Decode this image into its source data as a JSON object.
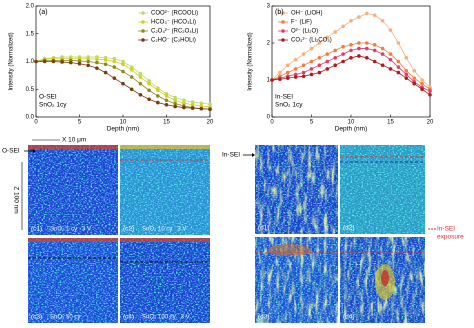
{
  "chart_data": [
    {
      "type": "line",
      "annotation": "(a)",
      "notes": [
        "O-SEI",
        "SnO₂ 1cy"
      ],
      "xlabel": "Depth (nm)",
      "ylabel": "Intensity (Normalized)",
      "x": [
        0,
        1,
        2,
        3,
        4,
        5,
        6,
        7,
        8,
        9,
        10,
        11,
        12,
        13,
        14,
        15,
        16,
        17,
        18,
        19,
        20
      ],
      "xlim": [
        0,
        20
      ],
      "xticks": [
        0,
        5,
        10,
        15,
        20
      ],
      "ylim": [
        0,
        2
      ],
      "yticks": [
        {
          "value": 0,
          "label": "0.0"
        },
        0.5,
        {
          "value": 1,
          "label": "1.0"
        },
        1.5,
        {
          "value": 2,
          "label": "2.0"
        }
      ],
      "legend": "upper right",
      "series": [
        {
          "name": "COO²⁻ (RCOOLi)",
          "color": "#b9dd6a",
          "values": [
            1.0,
            1.05,
            1.07,
            1.08,
            1.08,
            1.08,
            1.08,
            1.08,
            1.07,
            1.05,
            1.0,
            0.9,
            0.78,
            0.65,
            0.52,
            0.42,
            0.35,
            0.3,
            0.27,
            0.25,
            0.23
          ]
        },
        {
          "name": "HCO₃⁻ (HCO₃Li)",
          "color": "#d6cf1e",
          "values": [
            1.0,
            1.04,
            1.05,
            1.05,
            1.05,
            1.05,
            1.05,
            1.04,
            1.03,
            1.0,
            0.95,
            0.85,
            0.72,
            0.6,
            0.48,
            0.38,
            0.3,
            0.25,
            0.22,
            0.2,
            0.18
          ]
        },
        {
          "name": "C₂O₄²⁻ (RC₂O₄Li)",
          "color": "#8c8a1c",
          "values": [
            1.0,
            1.02,
            1.02,
            1.02,
            1.02,
            1.01,
            1.0,
            0.98,
            0.95,
            0.9,
            0.82,
            0.72,
            0.6,
            0.48,
            0.38,
            0.3,
            0.24,
            0.2,
            0.17,
            0.15,
            0.14
          ]
        },
        {
          "name": "C₂HO⁻ (C₂HOLi)",
          "color": "#7a3a12",
          "values": [
            1.0,
            1.0,
            1.0,
            0.99,
            0.98,
            0.96,
            0.93,
            0.88,
            0.8,
            0.7,
            0.6,
            0.5,
            0.4,
            0.32,
            0.26,
            0.22,
            0.19,
            0.17,
            0.16,
            0.15,
            0.14
          ]
        }
      ]
    },
    {
      "type": "line",
      "annotation": "(b)",
      "notes": [
        "In-SEI",
        "SnO₂ 1cy"
      ],
      "xlabel": "Depth (nm)",
      "ylabel": "Intensity (Normalized)",
      "x": [
        0,
        1,
        2,
        3,
        4,
        5,
        6,
        7,
        8,
        9,
        10,
        11,
        12,
        13,
        14,
        15,
        16,
        17,
        18,
        19,
        20
      ],
      "xlim": [
        0,
        20
      ],
      "xticks": [
        0,
        5,
        10,
        15,
        20
      ],
      "ylim": [
        0,
        3
      ],
      "yticks": [
        0,
        1,
        2,
        3
      ],
      "legend": "upper left",
      "series": [
        {
          "name": "OH⁻ (LiOH)",
          "color": "#f6b07c",
          "values": [
            1.0,
            1.2,
            1.4,
            1.55,
            1.7,
            1.85,
            2.0,
            2.15,
            2.3,
            2.45,
            2.6,
            2.7,
            2.8,
            2.75,
            2.6,
            2.35,
            2.0,
            1.6,
            1.25,
            1.0,
            0.8
          ]
        },
        {
          "name": "F⁻ (LiF)",
          "color": "#ef7f3a",
          "values": [
            1.0,
            1.1,
            1.2,
            1.3,
            1.4,
            1.5,
            1.6,
            1.7,
            1.8,
            1.9,
            1.95,
            2.0,
            2.0,
            1.95,
            1.85,
            1.7,
            1.5,
            1.25,
            1.05,
            0.9,
            0.75
          ]
        },
        {
          "name": "O²⁻ (Li₂O)",
          "color": "#e6396c",
          "values": [
            1.0,
            1.05,
            1.1,
            1.15,
            1.2,
            1.3,
            1.4,
            1.5,
            1.6,
            1.7,
            1.8,
            1.85,
            1.85,
            1.8,
            1.7,
            1.55,
            1.35,
            1.15,
            0.95,
            0.8,
            0.7
          ]
        },
        {
          "name": "CO₃²⁻ (Li₂CO₃)",
          "color": "#b01c1c",
          "values": [
            1.0,
            1.02,
            1.05,
            1.08,
            1.1,
            1.15,
            1.2,
            1.3,
            1.4,
            1.5,
            1.6,
            1.65,
            1.6,
            1.5,
            1.4,
            1.3,
            1.2,
            1.05,
            0.9,
            0.75,
            0.6
          ]
        }
      ]
    }
  ],
  "images": {
    "o_sei": "O-SEI",
    "scale_x": "X 10 μm",
    "scale_z": "Z 100 nm",
    "in_sei": "In-SEI",
    "exposure": [
      "In-SEI",
      "exposure"
    ],
    "panels": [
      {
        "label": "(c1)",
        "caption": "SnO₂ 1 cy   3 V"
      },
      {
        "label": "(c2)",
        "caption": "SnO₂ 10 cy   3 V"
      },
      {
        "label": "(c3)",
        "caption": "SnO₂ 50 cy"
      },
      {
        "label": "(c4)",
        "caption": "SnO₂ 100 cy   3 V"
      },
      {
        "label": "(d1)"
      },
      {
        "label": "(d2)"
      },
      {
        "label": "(d3)"
      },
      {
        "label": "(d4)"
      }
    ]
  }
}
